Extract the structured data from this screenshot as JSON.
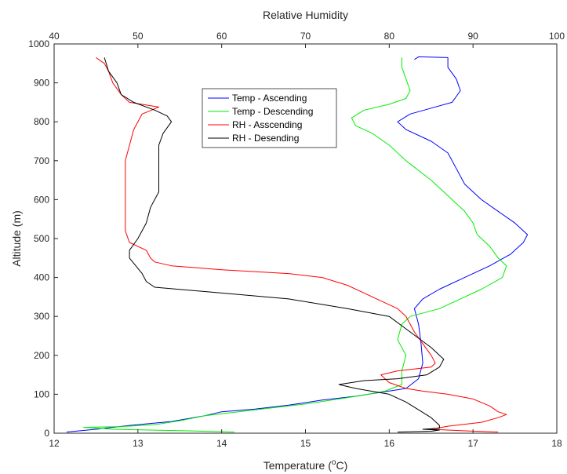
{
  "chart_data": {
    "type": "line",
    "title": "",
    "xlabel_bottom": "Temperature (",
    "xlabel_bottom_sup": "o",
    "xlabel_bottom_suffix": "C)",
    "xlabel_top": "Relative Humidity",
    "ylabel": "Altitude (m)",
    "xlim_bottom": [
      12,
      18
    ],
    "xlim_top": [
      40,
      100
    ],
    "ylim": [
      0,
      1000
    ],
    "xticks_bottom": [
      "12",
      "13",
      "14",
      "15",
      "16",
      "17",
      "18"
    ],
    "xticks_top": [
      "40",
      "50",
      "60",
      "70",
      "80",
      "90",
      "100"
    ],
    "yticks": [
      "0",
      "100",
      "200",
      "300",
      "400",
      "500",
      "600",
      "700",
      "800",
      "900",
      "1000"
    ],
    "grid": false,
    "legend_position": "top-center",
    "series": [
      {
        "name": "Temp - Ascending",
        "axis": "bottom",
        "color": "#0000ff",
        "points": [
          [
            12.15,
            3
          ],
          [
            12.5,
            10
          ],
          [
            12.9,
            20
          ],
          [
            13.4,
            30
          ],
          [
            13.8,
            45
          ],
          [
            14.0,
            55
          ],
          [
            14.4,
            62
          ],
          [
            14.8,
            72
          ],
          [
            15.2,
            85
          ],
          [
            15.6,
            95
          ],
          [
            15.9,
            105
          ],
          [
            16.2,
            115
          ],
          [
            16.35,
            140
          ],
          [
            16.4,
            180
          ],
          [
            16.38,
            230
          ],
          [
            16.35,
            280
          ],
          [
            16.3,
            320
          ],
          [
            16.4,
            345
          ],
          [
            16.6,
            370
          ],
          [
            16.9,
            400
          ],
          [
            17.2,
            430
          ],
          [
            17.45,
            460
          ],
          [
            17.6,
            490
          ],
          [
            17.65,
            510
          ],
          [
            17.5,
            540
          ],
          [
            17.3,
            570
          ],
          [
            17.1,
            600
          ],
          [
            16.9,
            640
          ],
          [
            16.8,
            680
          ],
          [
            16.7,
            720
          ],
          [
            16.5,
            750
          ],
          [
            16.2,
            780
          ],
          [
            16.1,
            800
          ],
          [
            16.25,
            820
          ],
          [
            16.5,
            835
          ],
          [
            16.75,
            850
          ],
          [
            16.85,
            880
          ],
          [
            16.8,
            910
          ],
          [
            16.7,
            940
          ],
          [
            16.7,
            965
          ],
          [
            16.35,
            967
          ],
          [
            16.3,
            960
          ]
        ]
      },
      {
        "name": "Temp - Descending",
        "axis": "bottom",
        "color": "#00ee00",
        "points": [
          [
            14.15,
            3
          ],
          [
            13.6,
            6
          ],
          [
            12.7,
            10
          ],
          [
            12.35,
            15
          ],
          [
            12.8,
            17
          ],
          [
            13.2,
            22
          ],
          [
            13.5,
            32
          ],
          [
            13.8,
            45
          ],
          [
            14.2,
            55
          ],
          [
            14.6,
            65
          ],
          [
            15.0,
            75
          ],
          [
            15.4,
            88
          ],
          [
            15.7,
            98
          ],
          [
            15.95,
            108
          ],
          [
            16.15,
            125
          ],
          [
            16.15,
            160
          ],
          [
            16.2,
            200
          ],
          [
            16.1,
            240
          ],
          [
            16.15,
            280
          ],
          [
            16.25,
            300
          ],
          [
            16.6,
            320
          ],
          [
            16.85,
            345
          ],
          [
            17.1,
            370
          ],
          [
            17.35,
            400
          ],
          [
            17.4,
            430
          ],
          [
            17.3,
            450
          ],
          [
            17.2,
            480
          ],
          [
            17.05,
            510
          ],
          [
            17.0,
            540
          ],
          [
            16.9,
            570
          ],
          [
            16.7,
            610
          ],
          [
            16.5,
            650
          ],
          [
            16.2,
            700
          ],
          [
            16.0,
            740
          ],
          [
            15.8,
            770
          ],
          [
            15.6,
            790
          ],
          [
            15.55,
            810
          ],
          [
            15.7,
            830
          ],
          [
            16.0,
            845
          ],
          [
            16.2,
            860
          ],
          [
            16.25,
            880
          ],
          [
            16.2,
            910
          ],
          [
            16.15,
            940
          ],
          [
            16.15,
            965
          ]
        ]
      },
      {
        "name": "RH - Asscending",
        "axis": "top",
        "color": "#ff0000",
        "points": [
          [
            93,
            3
          ],
          [
            89,
            6
          ],
          [
            85,
            10
          ],
          [
            87,
            18
          ],
          [
            91,
            28
          ],
          [
            93,
            40
          ],
          [
            94,
            48
          ],
          [
            93,
            55
          ],
          [
            92,
            70
          ],
          [
            90,
            88
          ],
          [
            87,
            100
          ],
          [
            84,
            108
          ],
          [
            82,
            115
          ],
          [
            80,
            130
          ],
          [
            79,
            150
          ],
          [
            81,
            160
          ],
          [
            85,
            170
          ],
          [
            85.5,
            180
          ],
          [
            85,
            200
          ],
          [
            84,
            230
          ],
          [
            83,
            260
          ],
          [
            82,
            300
          ],
          [
            81,
            320
          ],
          [
            79,
            340
          ],
          [
            77,
            360
          ],
          [
            75,
            380
          ],
          [
            72,
            400
          ],
          [
            68,
            410
          ],
          [
            60,
            420
          ],
          [
            54,
            430
          ],
          [
            52,
            440
          ],
          [
            51.5,
            450
          ],
          [
            51,
            470
          ],
          [
            49,
            490
          ],
          [
            48.5,
            520
          ],
          [
            48.5,
            560
          ],
          [
            48.5,
            600
          ],
          [
            48.5,
            640
          ],
          [
            48.5,
            700
          ],
          [
            49,
            740
          ],
          [
            49.5,
            780
          ],
          [
            50.5,
            820
          ],
          [
            52.5,
            838
          ],
          [
            49,
            850
          ],
          [
            48,
            870
          ],
          [
            47,
            900
          ],
          [
            46.5,
            930
          ],
          [
            46,
            950
          ],
          [
            45,
            965
          ]
        ]
      },
      {
        "name": "RH - Desending",
        "axis": "top",
        "color": "#000000",
        "points": [
          [
            81,
            3
          ],
          [
            85,
            5
          ],
          [
            86,
            8
          ],
          [
            84,
            10
          ],
          [
            86,
            13
          ],
          [
            86,
            20
          ],
          [
            85,
            40
          ],
          [
            83.5,
            60
          ],
          [
            82,
            80
          ],
          [
            80,
            100
          ],
          [
            76,
            115
          ],
          [
            74,
            125
          ],
          [
            77,
            135
          ],
          [
            81,
            140
          ],
          [
            84.5,
            150
          ],
          [
            86,
            170
          ],
          [
            86.5,
            190
          ],
          [
            85,
            220
          ],
          [
            82.5,
            260
          ],
          [
            80,
            300
          ],
          [
            75,
            320
          ],
          [
            68,
            345
          ],
          [
            60,
            360
          ],
          [
            52,
            375
          ],
          [
            51,
            390
          ],
          [
            50.5,
            410
          ],
          [
            49,
            450
          ],
          [
            49,
            470
          ],
          [
            50,
            500
          ],
          [
            51,
            540
          ],
          [
            51.5,
            580
          ],
          [
            52.5,
            620
          ],
          [
            52.5,
            660
          ],
          [
            52.5,
            700
          ],
          [
            52.5,
            740
          ],
          [
            53,
            770
          ],
          [
            54,
            800
          ],
          [
            53.5,
            815
          ],
          [
            52,
            830
          ],
          [
            49.5,
            850
          ],
          [
            48,
            870
          ],
          [
            47.5,
            900
          ],
          [
            46.5,
            930
          ],
          [
            46,
            965
          ]
        ]
      }
    ]
  }
}
